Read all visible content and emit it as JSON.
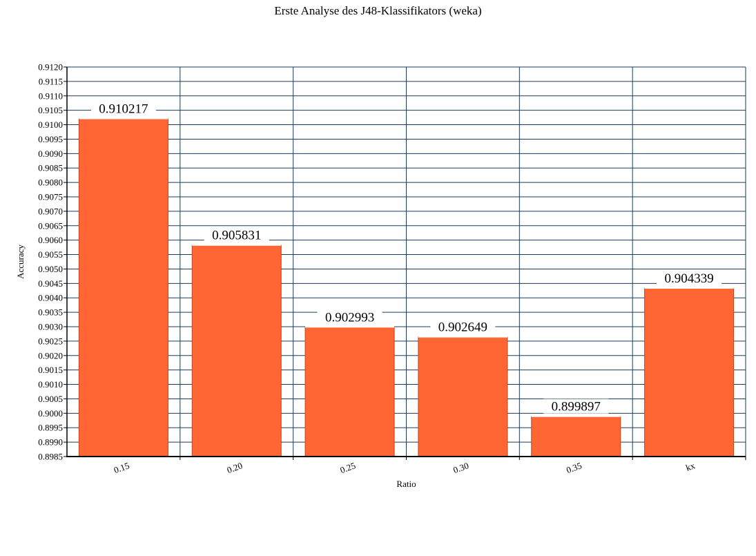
{
  "chart_data": {
    "type": "bar",
    "title": "Erste Analyse des J48-Klassifikators (weka)",
    "xlabel": "Ratio",
    "ylabel": "Accuracy",
    "categories": [
      "0.15",
      "0.20",
      "0.25",
      "0.30",
      "0.35",
      "kx"
    ],
    "values": [
      0.910217,
      0.905831,
      0.902993,
      0.902649,
      0.899897,
      0.904339
    ],
    "value_labels": [
      "0.910217",
      "0.905831",
      "0.902993",
      "0.902649",
      "0.899897",
      "0.904339"
    ],
    "ylim": [
      0.8985,
      0.912
    ],
    "ytick_step": 0.0005,
    "grid": true,
    "bar_color": "#ff6633",
    "bar_edge_color": "#c0441a",
    "grid_color": "#1a3a5c"
  }
}
